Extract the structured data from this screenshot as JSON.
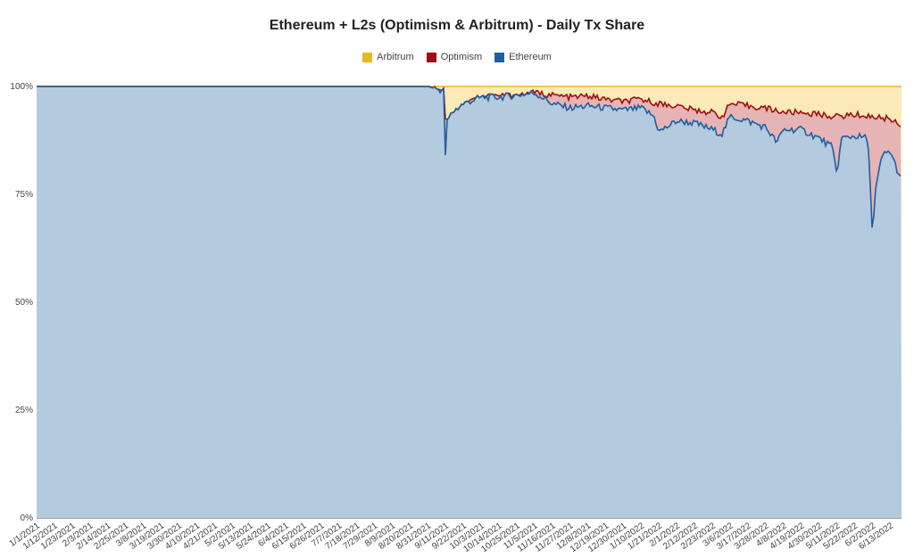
{
  "colors": {
    "arbitrum_line": "#e8b820",
    "arbitrum_fill": "#fbeab7",
    "optimism_line": "#9c1010",
    "optimism_fill": "#e6b4b4",
    "ethereum_line": "#1f5fa0",
    "ethereum_fill": "#b3cadf",
    "grid": "#a9b9c9",
    "axis": "#444444"
  },
  "chart_data": {
    "type": "area",
    "stacked": true,
    "title": "Ethereum + L2s (Optimism & Arbitrum) - Daily Tx Share",
    "xlabel": "",
    "ylabel": "",
    "ylim": [
      0,
      100
    ],
    "y_ticks": [
      "0%",
      "25%",
      "50%",
      "75%",
      "100%"
    ],
    "grid": true,
    "legend_position": "top",
    "x_range": [
      "1/1/2021",
      "6/20/2022"
    ],
    "x_ticks": [
      "1/1/2021",
      "1/12/2021",
      "1/23/2021",
      "2/3/2021",
      "2/14/2021",
      "2/25/2021",
      "3/8/2021",
      "3/19/2021",
      "3/30/2021",
      "4/10/2021",
      "4/21/2021",
      "5/2/2021",
      "5/13/2021",
      "5/24/2021",
      "6/4/2021",
      "6/15/2021",
      "6/26/2021",
      "7/7/2021",
      "7/18/2021",
      "7/29/2021",
      "8/9/2021",
      "8/20/2021",
      "8/31/2021",
      "9/11/2021",
      "9/22/2021",
      "10/3/2021",
      "10/14/2021",
      "10/25/2021",
      "11/5/2021",
      "11/16/2021",
      "11/27/2021",
      "12/8/2021",
      "12/19/2021",
      "12/30/2021",
      "1/10/2022",
      "1/21/2022",
      "2/1/2022",
      "2/12/2022",
      "2/23/2022",
      "3/6/2022",
      "3/17/2022",
      "3/28/2022",
      "4/8/2022",
      "4/19/2022",
      "4/30/2022",
      "5/11/2022",
      "5/22/2022",
      "6/2/2022",
      "6/13/2022"
    ],
    "series": [
      {
        "name": "Arbitrum",
        "values_desc": "share above Ethereum+Optimism up to 100%"
      },
      {
        "name": "Optimism"
      },
      {
        "name": "Ethereum"
      }
    ],
    "ethereum_share": [
      [
        "1/1/2021",
        100
      ],
      [
        "6/20/2021",
        100
      ],
      [
        "8/31/2021",
        100
      ],
      [
        "9/5/2021",
        99.5
      ],
      [
        "9/10/2021",
        99
      ],
      [
        "9/11/2021",
        82
      ],
      [
        "9/12/2021",
        92
      ],
      [
        "9/15/2021",
        94
      ],
      [
        "9/22/2021",
        96
      ],
      [
        "10/3/2021",
        97.5
      ],
      [
        "10/14/2021",
        97.5
      ],
      [
        "10/25/2021",
        98
      ],
      [
        "11/5/2021",
        98.5
      ],
      [
        "11/12/2021",
        97
      ],
      [
        "11/16/2021",
        96
      ],
      [
        "11/27/2021",
        95
      ],
      [
        "12/8/2021",
        95.5
      ],
      [
        "12/19/2021",
        95
      ],
      [
        "12/30/2021",
        94.5
      ],
      [
        "1/10/2022",
        95
      ],
      [
        "1/18/2022",
        93
      ],
      [
        "1/21/2022",
        89.5
      ],
      [
        "2/1/2022",
        92
      ],
      [
        "2/12/2022",
        91.5
      ],
      [
        "2/23/2022",
        90
      ],
      [
        "3/1/2022",
        89
      ],
      [
        "3/6/2022",
        93
      ],
      [
        "3/17/2022",
        92
      ],
      [
        "3/28/2022",
        90.5
      ],
      [
        "4/4/2022",
        87
      ],
      [
        "4/8/2022",
        90
      ],
      [
        "4/19/2022",
        90
      ],
      [
        "4/30/2022",
        88
      ],
      [
        "5/8/2022",
        86
      ],
      [
        "5/11/2022",
        80
      ],
      [
        "5/14/2022",
        88
      ],
      [
        "5/22/2022",
        88.5
      ],
      [
        "5/30/2022",
        88
      ],
      [
        "6/1/2022",
        76
      ],
      [
        "6/2/2022",
        65
      ],
      [
        "6/4/2022",
        76
      ],
      [
        "6/8/2022",
        84
      ],
      [
        "6/13/2022",
        85
      ],
      [
        "6/16/2022",
        82
      ],
      [
        "6/20/2022",
        78
      ]
    ],
    "eth_plus_optimism_share": [
      [
        "1/1/2021",
        100
      ],
      [
        "6/20/2021",
        100
      ],
      [
        "6/24/2021",
        99.7
      ],
      [
        "8/6/2021",
        99.7
      ],
      [
        "8/9/2021",
        100
      ],
      [
        "9/1/2021",
        100
      ],
      [
        "9/3/2021",
        98.5
      ],
      [
        "9/10/2021",
        99
      ],
      [
        "9/11/2021",
        92
      ],
      [
        "9/14/2021",
        91
      ],
      [
        "9/22/2021",
        96
      ],
      [
        "10/3/2021",
        97.5
      ],
      [
        "10/14/2021",
        97.8
      ],
      [
        "10/25/2021",
        98
      ],
      [
        "11/5/2021",
        98.5
      ],
      [
        "11/16/2021",
        98
      ],
      [
        "11/27/2021",
        97.5
      ],
      [
        "12/8/2021",
        97.8
      ],
      [
        "12/19/2021",
        97
      ],
      [
        "12/30/2021",
        96.5
      ],
      [
        "1/10/2022",
        97
      ],
      [
        "1/21/2022",
        96
      ],
      [
        "2/1/2022",
        95.5
      ],
      [
        "2/12/2022",
        94.5
      ],
      [
        "2/23/2022",
        94
      ],
      [
        "3/1/2022",
        93
      ],
      [
        "3/6/2022",
        96
      ],
      [
        "3/17/2022",
        95.5
      ],
      [
        "3/28/2022",
        95
      ],
      [
        "4/8/2022",
        94
      ],
      [
        "4/19/2022",
        94
      ],
      [
        "4/30/2022",
        93.5
      ],
      [
        "5/11/2022",
        93
      ],
      [
        "5/22/2022",
        93.5
      ],
      [
        "6/2/2022",
        93
      ],
      [
        "6/13/2022",
        92.5
      ],
      [
        "6/20/2022",
        91
      ]
    ]
  }
}
